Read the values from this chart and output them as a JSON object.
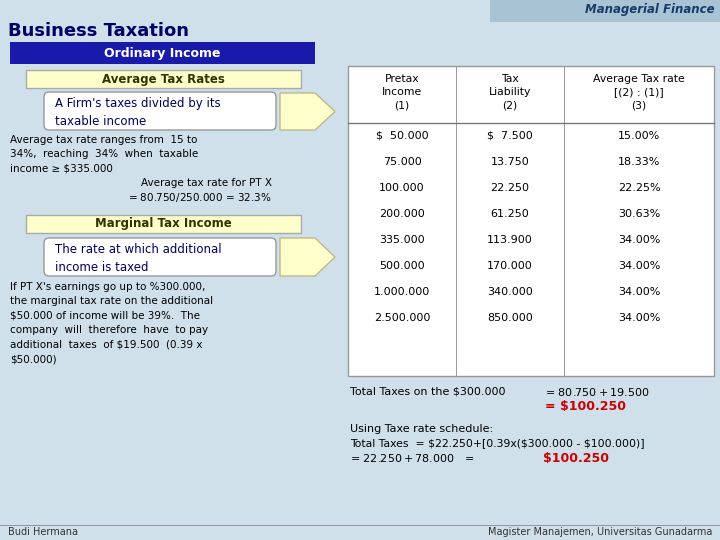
{
  "title": "Managerial Finance",
  "slide_title": "Business Taxation",
  "bg_color": "#cfe0eb",
  "ordinary_income_label": "Ordinary Income",
  "ordinary_income_bg": "#1a1aaa",
  "ordinary_income_fg": "#ffffff",
  "avg_tax_label": "Average Tax Rates",
  "avg_tax_bg": "#ffffcc",
  "avg_tax_border": "#aaaaaa",
  "box1_text": "A Firm's taxes divided by its\ntaxable income",
  "avg_text1": "Average tax rate ranges from  15 to\n34%,  reaching  34%  when  taxable\nincome ≥ $335.000",
  "avg_text2_line1": "Average tax rate for PT X",
  "avg_text2_line2": "= $80.750 /  $250.000 = 32.3%",
  "marginal_label": "Marginal Tax Income",
  "marginal_bg": "#ffffcc",
  "marginal_border": "#aaaaaa",
  "box2_text": "The rate at which additional\nincome is taxed",
  "marginal_text": "If PT X's earnings go up to %300.000,\nthe marginal tax rate on the additional\n$50.000 of income will be 39%.  The\ncompany  will  therefore  have  to pay\nadditional  taxes  of $19.500  (0.39 x\n$50.000)",
  "table_headers": [
    "Pretax\nIncome\n(1)",
    "Tax\nLiability\n(2)",
    "Average Tax rate\n[(2) : (1)]\n(3)"
  ],
  "table_data": [
    [
      "$  50.000",
      "$  7.500",
      "15.00%"
    ],
    [
      "75.000",
      "13.750",
      "18.33%"
    ],
    [
      "100.000",
      "22.250",
      "22.25%"
    ],
    [
      "200.000",
      "61.250",
      "30.63%"
    ],
    [
      "335.000",
      "113.900",
      "34.00%"
    ],
    [
      "500.000",
      "170.000",
      "34.00%"
    ],
    [
      "1.000.000",
      "340.000",
      "34.00%"
    ],
    [
      "2.500.000",
      "850.000",
      "34.00%"
    ]
  ],
  "total_text1": "Total Taxes on the $300.000",
  "total_text2": "= $80.750+$19.500",
  "total_text3": "= $100.250",
  "using_text1": "Using Taxe rate schedule:",
  "using_text2": "Total Taxes  = $22.250+[0.39x($300.000 - $100.000)]",
  "using_text3_black": "= $22.250+$78.000   =",
  "using_text3_red": "$100.250",
  "footer_left": "Budi Hermana",
  "footer_right": "Magister Manajemen, Universitas Gunadarma",
  "arrow_color": "#ffffcc",
  "arrow_border": "#bbbb88",
  "header_bar_color": "#a8c4d4"
}
